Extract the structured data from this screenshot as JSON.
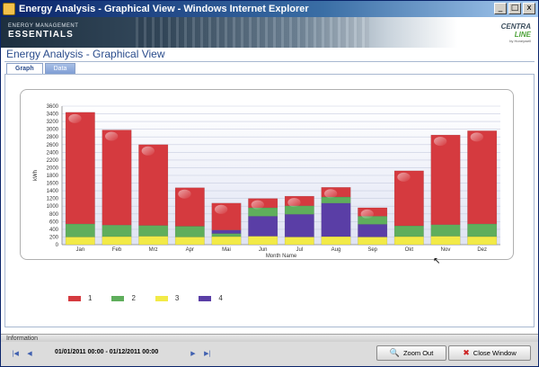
{
  "window": {
    "title": "Energy Analysis - Graphical View - Windows Internet Explorer",
    "controls": [
      "_",
      "□",
      "x"
    ]
  },
  "banner": {
    "brand_small": "ENERGY MANAGEMENT",
    "brand_big": "ESSENTIALS",
    "logo_line1": "CENTRA",
    "logo_line2": "LINE",
    "logo_line3": "by Honeywell"
  },
  "page": {
    "title": "Energy Analysis - Graphical View",
    "tabs": [
      {
        "label": "Graph",
        "active": true
      },
      {
        "label": "Data",
        "active": false
      }
    ]
  },
  "chart_data": {
    "type": "bar",
    "stacked": true,
    "xlabel": "Month Name",
    "ylabel": "kWh",
    "ylim": [
      0,
      3600
    ],
    "yticks": [
      0,
      200,
      400,
      600,
      800,
      1000,
      1200,
      1400,
      1600,
      1800,
      2000,
      2200,
      2400,
      2600,
      2800,
      3000,
      3200,
      3400,
      3600
    ],
    "categories": [
      "Jan",
      "Feb",
      "Mrz",
      "Apr",
      "Mai",
      "Jun",
      "Jul",
      "Aug",
      "Sep",
      "Okt",
      "Nov",
      "Dez"
    ],
    "series": [
      {
        "name": "3",
        "color": "#f2ea47",
        "values": [
          200,
          210,
          220,
          200,
          210,
          220,
          200,
          210,
          200,
          210,
          220,
          210
        ]
      },
      {
        "name": "2",
        "color": "#5fae5c",
        "values": [
          340,
          300,
          280,
          280,
          80,
          0,
          0,
          0,
          0,
          280,
          300,
          330
        ]
      },
      {
        "name": "4",
        "color": "#5a3ea6",
        "values": [
          0,
          0,
          0,
          0,
          90,
          520,
          590,
          870,
          330,
          0,
          0,
          0
        ]
      },
      {
        "name": "1",
        "color": "#d53a3f",
        "values": [
          2900,
          2470,
          2100,
          1000,
          700,
          240,
          250,
          250,
          220,
          1430,
          2330,
          2420
        ]
      }
    ],
    "series_2_caps": [
      0,
      0,
      0,
      0,
      0,
      220,
      220,
      160,
      210,
      0,
      0,
      0
    ],
    "legend": [
      {
        "name": "1",
        "color": "#d53a3f"
      },
      {
        "name": "2",
        "color": "#5fae5c"
      },
      {
        "name": "3",
        "color": "#f2ea47"
      },
      {
        "name": "4",
        "color": "#5a3ea6"
      }
    ],
    "legend_position": "bottom-left",
    "grid": true
  },
  "info": {
    "label": "Information",
    "date_range": "01/01/2011 00:00 - 01/12/2011 00:00",
    "nav": [
      "|◀",
      "◀",
      "▶",
      "▶|"
    ]
  },
  "buttons": {
    "zoom_out": "Zoom Out",
    "close_window": "Close Window"
  }
}
